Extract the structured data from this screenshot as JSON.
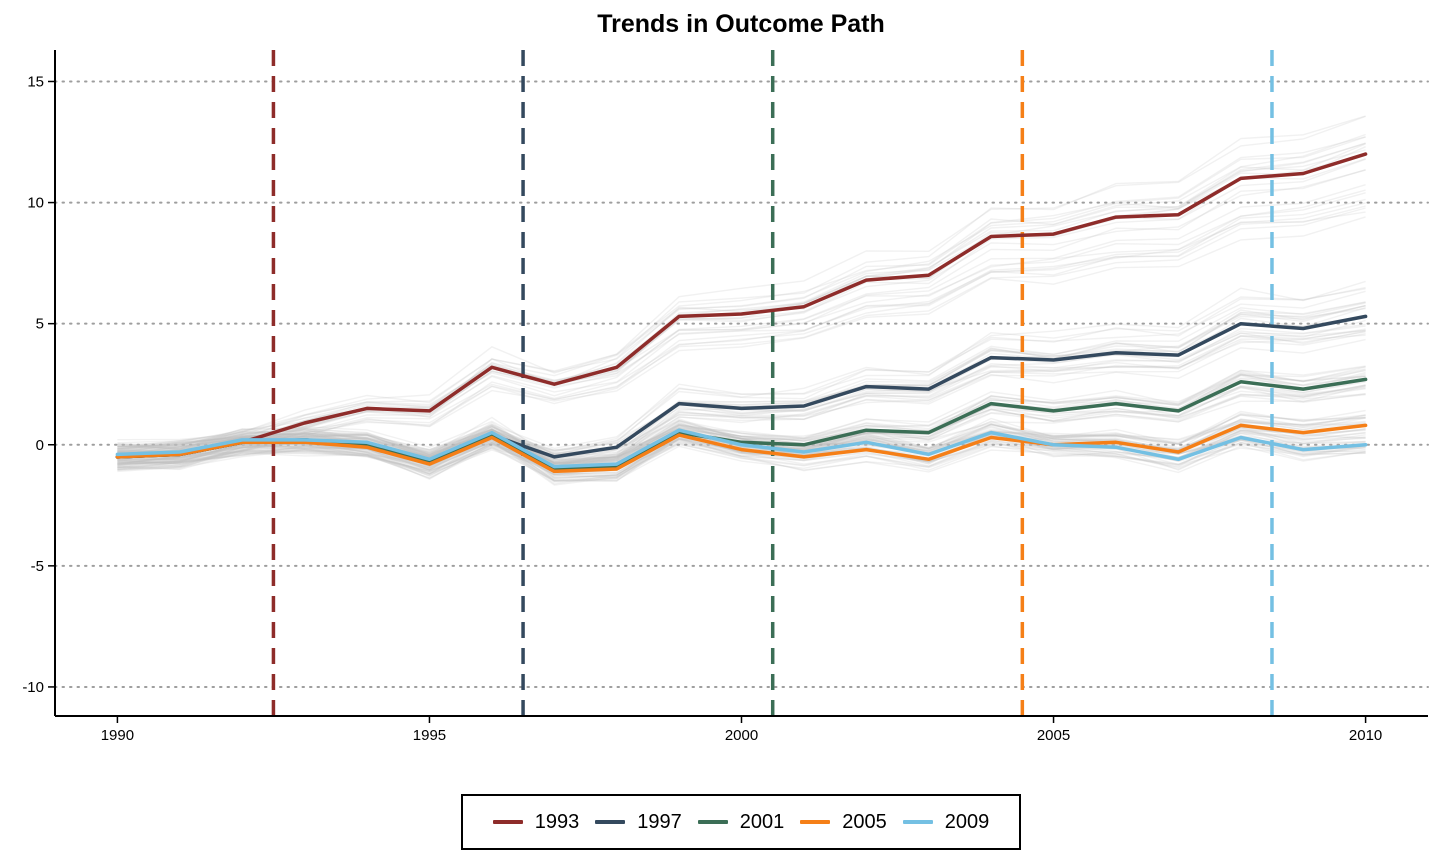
{
  "chart_data": {
    "type": "line",
    "title": "Trends in Outcome Path",
    "xlabel": "",
    "ylabel": "",
    "xlim": [
      1989,
      2011
    ],
    "ylim": [
      -11.2,
      16.3
    ],
    "x_ticks": [
      1990,
      1995,
      2000,
      2005,
      2010
    ],
    "y_ticks": [
      15,
      10,
      5,
      0,
      -5,
      -10
    ],
    "y_tick_labels": [
      "15",
      "10",
      "5",
      "0",
      "-5",
      "-10"
    ],
    "grid": "horizontal dotted",
    "legend_position": "bottom",
    "x": [
      1990,
      1991,
      1992,
      1993,
      1994,
      1995,
      1996,
      1997,
      1998,
      1999,
      2000,
      2001,
      2002,
      2003,
      2004,
      2005,
      2006,
      2007,
      2008,
      2009,
      2010
    ],
    "series": [
      {
        "name": "1993",
        "color": "#8e2c2a",
        "treatment_year": 1992.5,
        "values": [
          -0.5,
          -0.4,
          0.1,
          0.9,
          1.5,
          1.4,
          3.2,
          2.5,
          3.2,
          5.3,
          5.4,
          5.7,
          6.8,
          7.0,
          8.6,
          8.7,
          9.4,
          9.5,
          11.0,
          11.2,
          12.0
        ]
      },
      {
        "name": "1997",
        "color": "#34495e",
        "treatment_year": 1996.5,
        "values": [
          -0.5,
          -0.4,
          0.1,
          0.2,
          0.0,
          -0.7,
          0.4,
          -0.5,
          -0.1,
          1.7,
          1.5,
          1.6,
          2.4,
          2.3,
          3.6,
          3.5,
          3.8,
          3.7,
          5.0,
          4.8,
          5.3
        ]
      },
      {
        "name": "2001",
        "color": "#3b6e56",
        "treatment_year": 2000.5,
        "values": [
          -0.5,
          -0.4,
          0.1,
          0.2,
          0.0,
          -0.7,
          0.4,
          -1.0,
          -0.9,
          0.5,
          0.1,
          0.0,
          0.6,
          0.5,
          1.7,
          1.4,
          1.7,
          1.4,
          2.6,
          2.3,
          2.7
        ]
      },
      {
        "name": "2005",
        "color": "#f57f17",
        "treatment_year": 2004.5,
        "values": [
          -0.5,
          -0.4,
          0.1,
          0.1,
          -0.1,
          -0.8,
          0.3,
          -1.1,
          -1.0,
          0.4,
          -0.2,
          -0.5,
          -0.2,
          -0.6,
          0.3,
          0.0,
          0.1,
          -0.3,
          0.8,
          0.5,
          0.8
        ]
      },
      {
        "name": "2009",
        "color": "#74c0e3",
        "treatment_year": 2008.5,
        "values": [
          -0.4,
          -0.3,
          0.2,
          0.2,
          0.1,
          -0.6,
          0.5,
          -0.9,
          -0.8,
          0.6,
          0.0,
          -0.3,
          0.1,
          -0.4,
          0.5,
          0.0,
          -0.1,
          -0.6,
          0.3,
          -0.2,
          0.0
        ]
      }
    ],
    "background_lines_color": "#bdbdbd"
  }
}
